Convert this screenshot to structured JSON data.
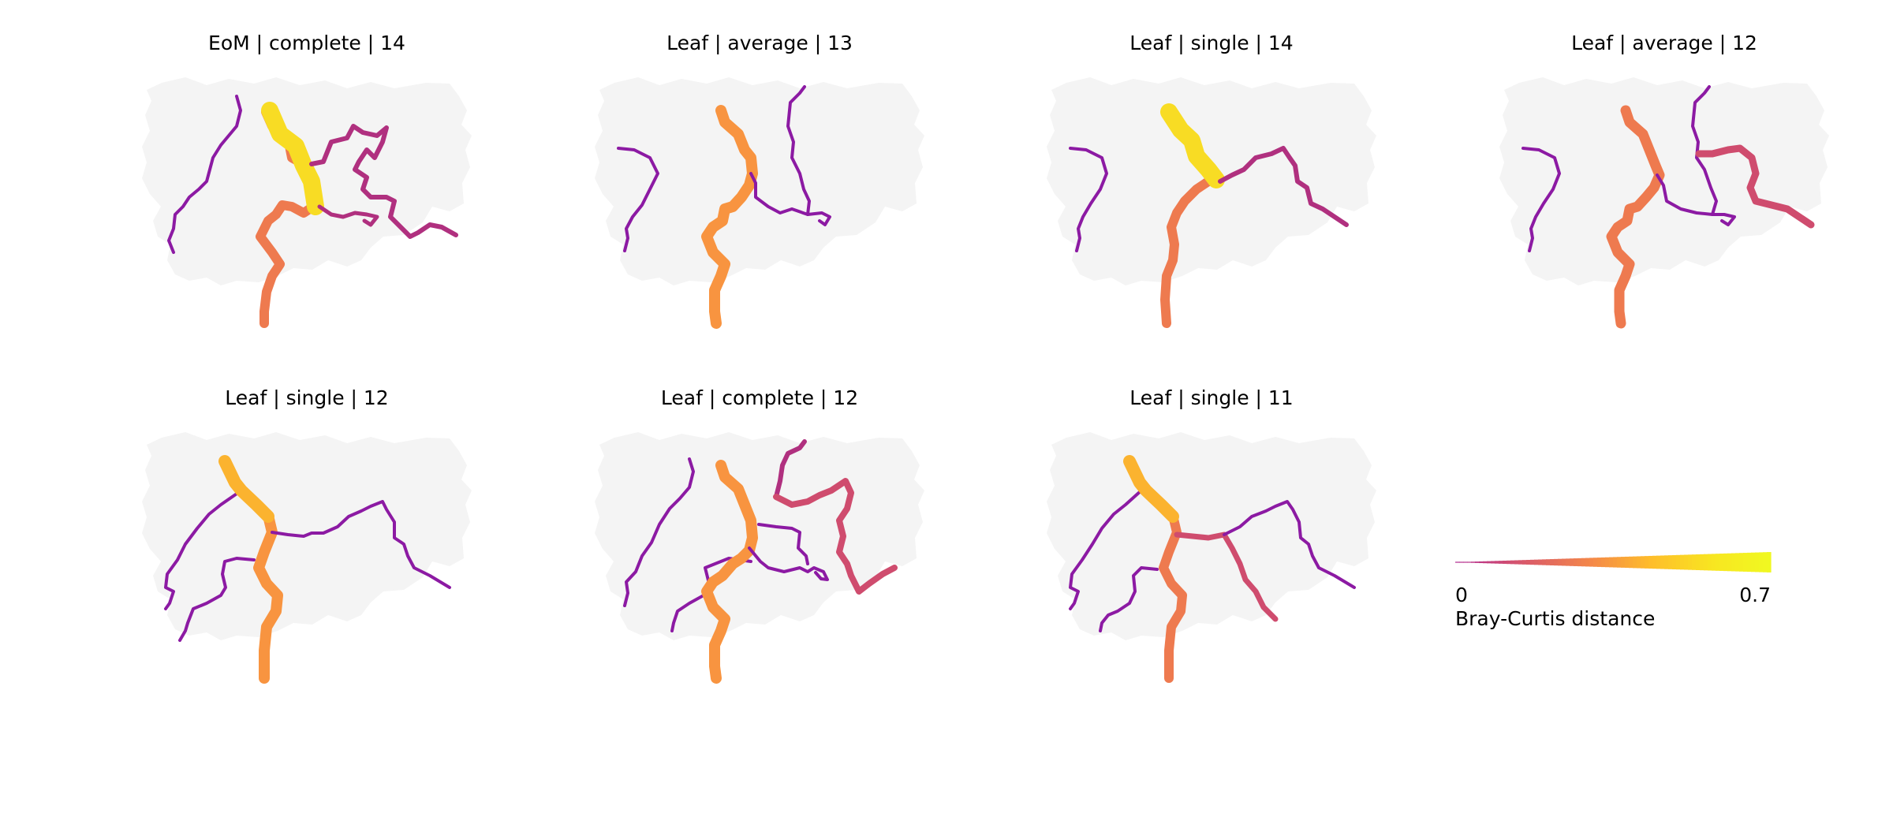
{
  "panels": [
    {
      "title": "EoM | complete | 14"
    },
    {
      "title": "Leaf | average | 13"
    },
    {
      "title": "Leaf | single | 14"
    },
    {
      "title": "Leaf | average | 12"
    },
    {
      "title": "Leaf | single | 12"
    },
    {
      "title": "Leaf | complete | 12"
    },
    {
      "title": "Leaf | single | 11"
    }
  ],
  "colorbar": {
    "min_label": "0",
    "max_label": "0.7",
    "label": "Bray-Curtis distance",
    "min": 0,
    "max": 0.7,
    "colormap": "plasma"
  },
  "colors": {
    "background": "#ffffff",
    "country_fill": "#f4f4f4",
    "low": "#8c1aa3",
    "mid_low": "#b0307f",
    "mid": "#cf4c6e",
    "mid_high": "#ee7a4f",
    "high": "#f89440",
    "higher": "#fbb32f",
    "max": "#f8dc24"
  }
}
